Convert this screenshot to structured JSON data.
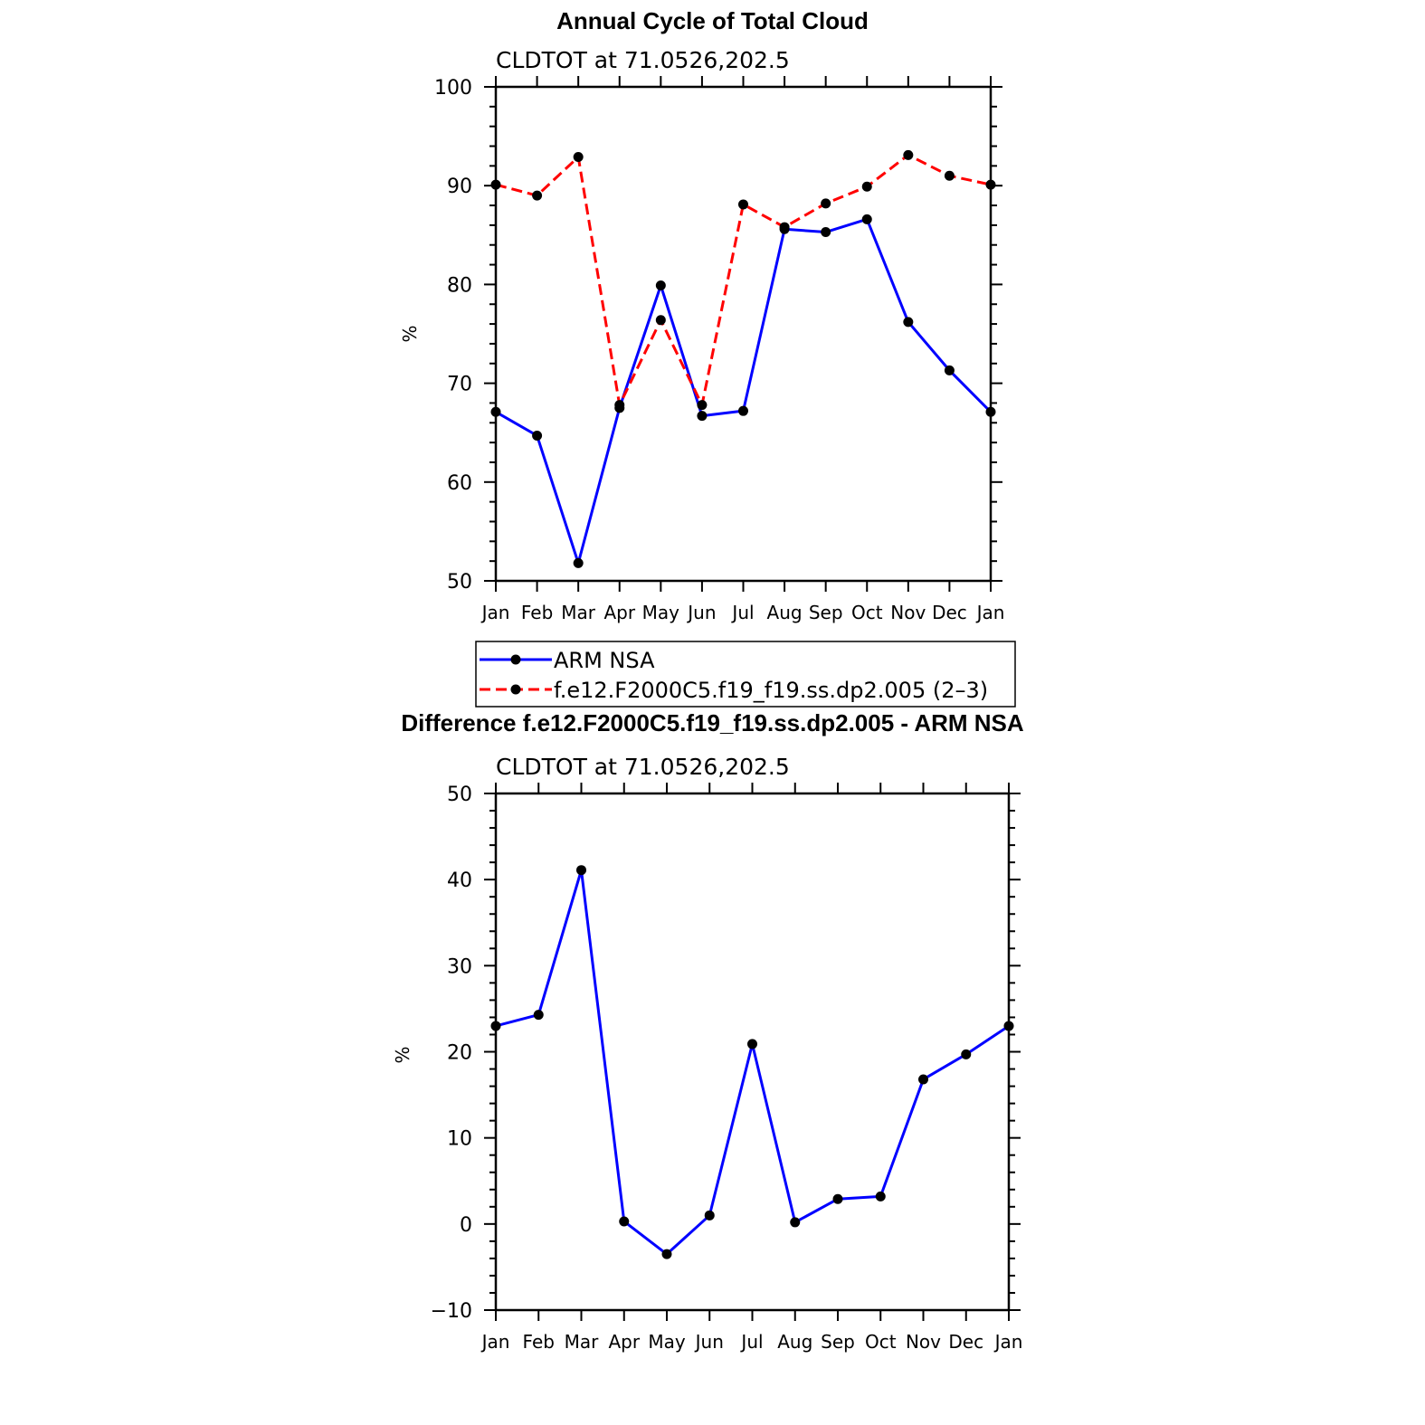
{
  "chart_data": [
    {
      "type": "line",
      "title": "Annual Cycle of Total Cloud",
      "subtitle": "CLDTOT at 71.0526,202.5",
      "ylabel": "%",
      "xlabel": "",
      "categories": [
        "Jan",
        "Feb",
        "Mar",
        "Apr",
        "May",
        "Jun",
        "Jul",
        "Aug",
        "Sep",
        "Oct",
        "Nov",
        "Dec",
        "Jan"
      ],
      "ylim": [
        50,
        100
      ],
      "yticks": [
        50,
        60,
        70,
        80,
        90,
        100
      ],
      "series": [
        {
          "name": "ARM NSA",
          "color": "#0000ff",
          "dashed": false,
          "values": [
            67.1,
            64.7,
            51.8,
            67.5,
            79.9,
            66.7,
            67.2,
            85.6,
            85.3,
            86.6,
            76.2,
            71.3,
            67.1
          ]
        },
        {
          "name": "f.e12.F2000C5.f19_f19.ss.dp2.005 (2–3)",
          "color": "#ff0000",
          "dashed": true,
          "values": [
            90.1,
            89.0,
            92.9,
            67.8,
            76.4,
            67.8,
            88.1,
            85.8,
            88.2,
            89.9,
            93.1,
            91.0,
            90.1
          ]
        }
      ],
      "legend": "below"
    },
    {
      "type": "line",
      "title": "Difference f.e12.F2000C5.f19_f19.ss.dp2.005 - ARM NSA",
      "subtitle": "CLDTOT at 71.0526,202.5",
      "ylabel": "%",
      "xlabel": "",
      "categories": [
        "Jan",
        "Feb",
        "Mar",
        "Apr",
        "May",
        "Jun",
        "Jul",
        "Aug",
        "Sep",
        "Oct",
        "Nov",
        "Dec",
        "Jan"
      ],
      "ylim": [
        -10,
        50
      ],
      "yticks": [
        -10,
        0,
        10,
        20,
        30,
        40,
        50
      ],
      "ytick_labels": [
        "−10",
        "0",
        "10",
        "20",
        "30",
        "40",
        "50"
      ],
      "series": [
        {
          "name": "Difference",
          "color": "#0000ff",
          "dashed": false,
          "values": [
            23.0,
            24.3,
            41.1,
            0.3,
            -3.5,
            1.0,
            20.9,
            0.2,
            2.9,
            3.2,
            16.8,
            19.7,
            23.0
          ]
        }
      ]
    }
  ]
}
